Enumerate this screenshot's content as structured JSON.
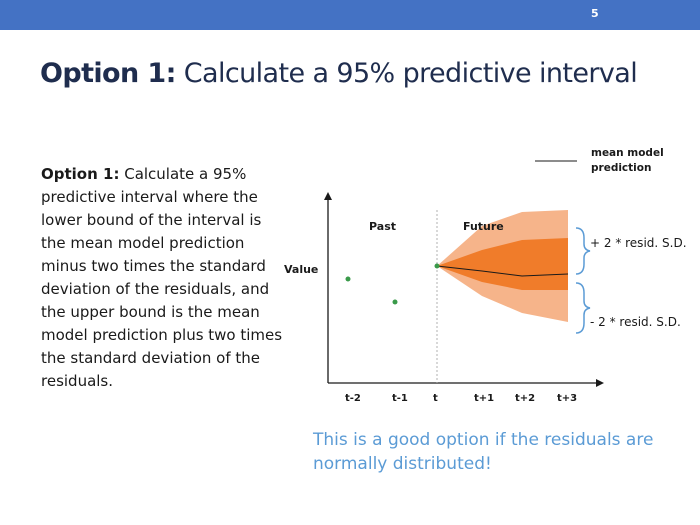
{
  "slide_number": "5",
  "title": {
    "bold": "Option 1:",
    "rest": " Calculate a 95% predictive interval"
  },
  "body": {
    "bold": "Option 1:",
    "rest": " Calculate a 95% predictive interval where the lower bound of the interval is the mean model prediction minus two times the standard deviation of the residuals, and the upper bound is the mean model prediction plus two times the standard deviation of the residuals."
  },
  "callout": "This is a good option if the residuals are normally distributed!",
  "colors": {
    "header_bar": "#4472c4",
    "title_text": "#1f2d4e",
    "callout_text": "#5b9bd5",
    "inner_band": "#f07c2a",
    "outer_band": "#f6b48a",
    "points": "#3a9a4a"
  },
  "chart_data": {
    "type": "line",
    "ylabel": "Value",
    "x_ticks": [
      "t-2",
      "t-1",
      "t",
      "t+1",
      "t+2",
      "t+3"
    ],
    "regions": [
      "Past",
      "Future"
    ],
    "legend": "mean model prediction",
    "annotations": {
      "upper": "+ 2 * resid. S.D.",
      "lower": "- 2 * resid. S.D."
    }
  }
}
